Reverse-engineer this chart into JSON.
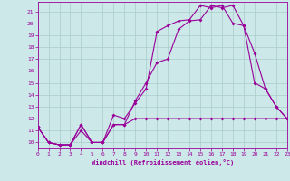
{
  "xlabel": "Windchill (Refroidissement éolien,°C)",
  "bg_color": "#cce8e8",
  "grid_color": "#aacccc",
  "line_color": "#990099",
  "xlim": [
    0,
    23
  ],
  "ylim": [
    9.5,
    21.8
  ],
  "xticks": [
    0,
    1,
    2,
    3,
    4,
    5,
    6,
    7,
    8,
    9,
    10,
    11,
    12,
    13,
    14,
    15,
    16,
    17,
    18,
    19,
    20,
    21,
    22,
    23
  ],
  "yticks": [
    10,
    11,
    12,
    13,
    14,
    15,
    16,
    17,
    18,
    19,
    20,
    21
  ],
  "line1_x": [
    0,
    1,
    2,
    3,
    4,
    5,
    6,
    7,
    8,
    9,
    10,
    11,
    12,
    13,
    14,
    15,
    16,
    17,
    18,
    19,
    20,
    21,
    22,
    23
  ],
  "line1_y": [
    11.3,
    10.0,
    9.8,
    9.8,
    11.5,
    10.0,
    10.0,
    11.5,
    11.5,
    13.5,
    15.0,
    16.7,
    17.0,
    19.5,
    20.2,
    20.3,
    21.5,
    21.3,
    21.5,
    19.8,
    17.5,
    14.5,
    13.0,
    12.0
  ],
  "line2_x": [
    0,
    1,
    2,
    3,
    4,
    5,
    6,
    7,
    8,
    9,
    10,
    11,
    12,
    13,
    14,
    15,
    16,
    17,
    18,
    19,
    20,
    21,
    22,
    23
  ],
  "line2_y": [
    11.3,
    10.0,
    9.8,
    9.8,
    11.5,
    10.0,
    10.0,
    12.3,
    12.0,
    13.3,
    14.5,
    19.3,
    19.8,
    20.2,
    20.3,
    21.5,
    21.3,
    21.5,
    20.0,
    19.8,
    15.0,
    14.5,
    13.0,
    12.0
  ],
  "line3_x": [
    0,
    1,
    2,
    3,
    4,
    5,
    6,
    7,
    8,
    9,
    10,
    11,
    12,
    13,
    14,
    15,
    16,
    17,
    18,
    19,
    20,
    21,
    22,
    23
  ],
  "line3_y": [
    11.3,
    10.0,
    9.8,
    9.8,
    11.0,
    10.0,
    10.0,
    11.5,
    11.5,
    12.0,
    12.0,
    12.0,
    12.0,
    12.0,
    12.0,
    12.0,
    12.0,
    12.0,
    12.0,
    12.0,
    12.0,
    12.0,
    12.0,
    12.0
  ]
}
